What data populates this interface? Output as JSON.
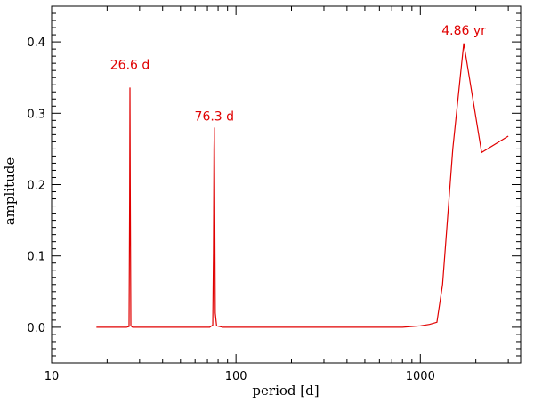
{
  "chart_data": {
    "type": "line",
    "xlabel": "period [d]",
    "ylabel": "amplitude",
    "x_scale": "log",
    "xlim": [
      10,
      3500
    ],
    "ylim": [
      -0.05,
      0.45
    ],
    "x_ticks": [
      {
        "value": 10,
        "label": "10"
      },
      {
        "value": 100,
        "label": "100"
      },
      {
        "value": 1000,
        "label": "1000"
      }
    ],
    "y_ticks": [
      {
        "value": 0.0,
        "label": "0.0"
      },
      {
        "value": 0.1,
        "label": "0.1"
      },
      {
        "value": 0.2,
        "label": "0.2"
      },
      {
        "value": 0.3,
        "label": "0.3"
      },
      {
        "value": 0.4,
        "label": "0.4"
      }
    ],
    "grid": false,
    "series_color": "#e00000",
    "series": [
      {
        "points": [
          [
            17.5,
            0.0
          ],
          [
            25.5,
            0.0
          ],
          [
            26.3,
            0.001
          ],
          [
            26.5,
            0.18
          ],
          [
            26.6,
            0.336
          ],
          [
            26.7,
            0.2
          ],
          [
            26.9,
            0.002
          ],
          [
            27.5,
            0.0
          ],
          [
            72.0,
            0.0
          ],
          [
            74.8,
            0.003
          ],
          [
            75.5,
            0.105
          ],
          [
            76.0,
            0.25
          ],
          [
            76.3,
            0.28
          ],
          [
            76.6,
            0.2
          ],
          [
            77.2,
            0.02
          ],
          [
            78.5,
            0.002
          ],
          [
            85.0,
            0.0
          ],
          [
            400.0,
            0.0
          ],
          [
            800.0,
            0.0
          ],
          [
            1000.0,
            0.002
          ],
          [
            1120.0,
            0.004
          ],
          [
            1230.0,
            0.007
          ],
          [
            1320.0,
            0.06
          ],
          [
            1500.0,
            0.25
          ],
          [
            1720.0,
            0.398
          ],
          [
            2150.0,
            0.245
          ],
          [
            3000.0,
            0.268
          ]
        ]
      }
    ],
    "annotations": [
      {
        "text": "26.6 d",
        "x": 26.6,
        "y": 0.362
      },
      {
        "text": "76.3 d",
        "x": 76.3,
        "y": 0.29
      },
      {
        "text": "4.86 yr",
        "x": 1720,
        "y": 0.41
      }
    ]
  }
}
